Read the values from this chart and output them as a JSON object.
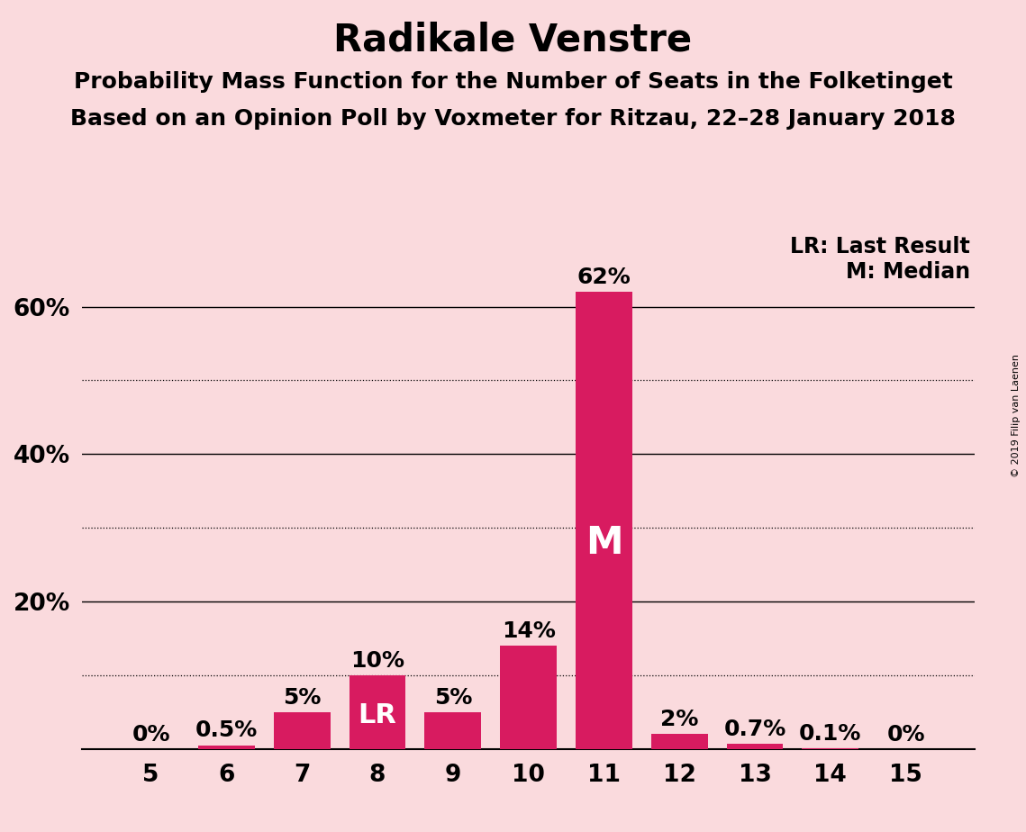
{
  "title": "Radikale Venstre",
  "subtitle1": "Probability Mass Function for the Number of Seats in the Folketinget",
  "subtitle2": "Based on an Opinion Poll by Voxmeter for Ritzau, 22–28 January 2018",
  "copyright": "© 2019 Filip van Laenen",
  "categories": [
    5,
    6,
    7,
    8,
    9,
    10,
    11,
    12,
    13,
    14,
    15
  ],
  "values": [
    0.0,
    0.5,
    5.0,
    10.0,
    5.0,
    14.0,
    62.0,
    2.0,
    0.7,
    0.1,
    0.0
  ],
  "labels": [
    "0%",
    "0.5%",
    "5%",
    "10%",
    "5%",
    "14%",
    "62%",
    "2%",
    "0.7%",
    "0.1%",
    "0%"
  ],
  "bar_color": "#D81B60",
  "background_color": "#FADADD",
  "last_result_seat": 8,
  "median_seat": 11,
  "ylim_max": 70,
  "solid_gridlines": [
    20,
    40,
    60
  ],
  "dotted_gridlines": [
    10,
    30,
    50
  ],
  "ytick_positions": [
    0,
    20,
    40,
    60
  ],
  "ytick_labels": [
    "",
    "20%",
    "40%",
    "60%"
  ],
  "legend_lr": "LR: Last Result",
  "legend_m": "M: Median",
  "title_fontsize": 30,
  "subtitle_fontsize": 18,
  "tick_fontsize": 19,
  "legend_fontsize": 17,
  "bar_label_fontsize": 18,
  "m_label_fontsize": 30,
  "lr_label_fontsize": 22
}
